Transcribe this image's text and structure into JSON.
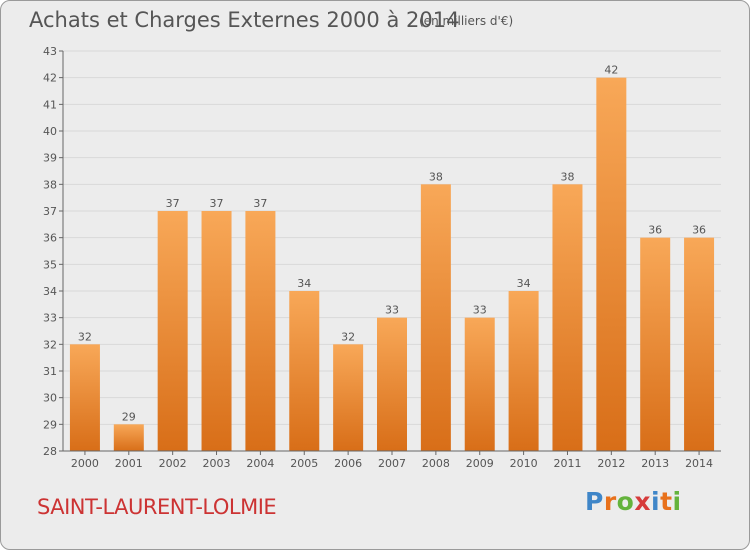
{
  "header": {
    "title": "Achats et Charges Externes 2000 à 2014",
    "unit_note": "(en milliers d'€)"
  },
  "footer": {
    "place": "SAINT-LAURENT-LOLMIE",
    "brand": "Proxiti"
  },
  "colors": {
    "bar_top": "#f8a858",
    "bar_bottom": "#d86e18",
    "place": "#cc3333",
    "background": "#ececec",
    "brand_letters": [
      "#3f86c8",
      "#e8711b",
      "#64b33c",
      "#d63b3b",
      "#3f86c8",
      "#e8711b",
      "#64b33c"
    ]
  },
  "chart_data": {
    "type": "bar",
    "title": "Achats et Charges Externes 2000 à 2014",
    "subtitle": "(en milliers d'€)",
    "xlabel": "",
    "ylabel": "",
    "categories": [
      "2000",
      "2001",
      "2002",
      "2003",
      "2004",
      "2005",
      "2006",
      "2007",
      "2008",
      "2009",
      "2010",
      "2011",
      "2012",
      "2013",
      "2014"
    ],
    "values": [
      32,
      29,
      37,
      37,
      37,
      34,
      32,
      33,
      38,
      33,
      34,
      38,
      42,
      36,
      36
    ],
    "data_labels": [
      "32",
      "29",
      "37",
      "37",
      "37",
      "34",
      "32",
      "33",
      "38",
      "33",
      "34",
      "38",
      "42",
      "36",
      "36"
    ],
    "ylim": [
      28,
      43
    ],
    "yticks": [
      "28",
      "29",
      "30",
      "31",
      "32",
      "33",
      "34",
      "35",
      "36",
      "37",
      "38",
      "39",
      "40",
      "41",
      "42",
      "43"
    ],
    "grid": true,
    "legend": "none"
  }
}
